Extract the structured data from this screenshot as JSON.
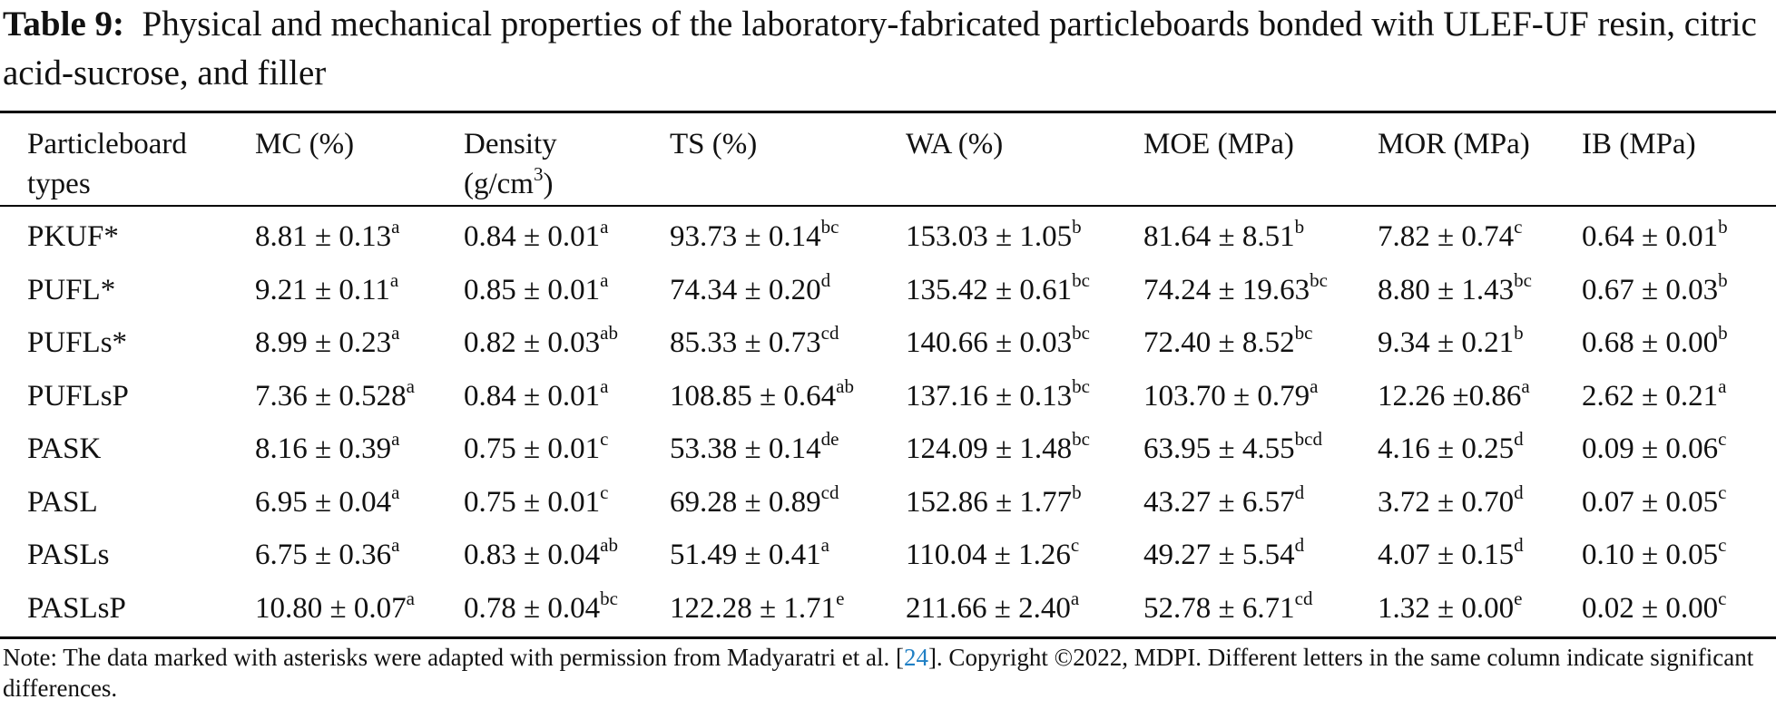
{
  "caption": {
    "label": "Table 9:",
    "text": "Physical and mechanical properties of the laboratory-fabricated particleboards bonded with ULEF-UF resin, citric acid-sucrose, and filler"
  },
  "headers": [
    {
      "line1": "Particleboard",
      "line2": "types"
    },
    {
      "line1": "MC (%)"
    },
    {
      "line1": "Density",
      "line2": "(g/cm",
      "sup": "3",
      "tail": ")"
    },
    {
      "line1": "TS (%)"
    },
    {
      "line1": "WA (%)"
    },
    {
      "line1": "MOE (MPa)"
    },
    {
      "line1": "MOR (MPa)"
    },
    {
      "line1": "IB (MPa)"
    }
  ],
  "rows": [
    {
      "type": "PKUF*",
      "cells": [
        {
          "v": "8.81 ± 0.13",
          "s": "a"
        },
        {
          "v": "0.84 ± 0.01",
          "s": "a"
        },
        {
          "v": "93.73 ± 0.14",
          "s": "bc"
        },
        {
          "v": "153.03 ± 1.05",
          "s": "b"
        },
        {
          "v": "81.64 ± 8.51",
          "s": "b"
        },
        {
          "v": "7.82 ± 0.74",
          "s": "c"
        },
        {
          "v": "0.64 ± 0.01",
          "s": "b"
        }
      ]
    },
    {
      "type": "PUFL*",
      "cells": [
        {
          "v": "9.21 ± 0.11",
          "s": "a"
        },
        {
          "v": "0.85 ± 0.01",
          "s": "a"
        },
        {
          "v": "74.34 ± 0.20",
          "s": "d"
        },
        {
          "v": "135.42 ± 0.61",
          "s": "bc"
        },
        {
          "v": "74.24 ± 19.63",
          "s": "bc"
        },
        {
          "v": "8.80 ± 1.43",
          "s": "bc"
        },
        {
          "v": "0.67 ± 0.03",
          "s": "b"
        }
      ]
    },
    {
      "type": "PUFLs*",
      "cells": [
        {
          "v": "8.99 ± 0.23",
          "s": "a"
        },
        {
          "v": "0.82 ± 0.03",
          "s": "ab"
        },
        {
          "v": "85.33 ± 0.73",
          "s": "cd"
        },
        {
          "v": "140.66 ± 0.03",
          "s": "bc"
        },
        {
          "v": "72.40 ± 8.52",
          "s": "bc"
        },
        {
          "v": "9.34 ± 0.21",
          "s": "b"
        },
        {
          "v": "0.68 ± 0.00",
          "s": "b"
        }
      ]
    },
    {
      "type": "PUFLsP",
      "cells": [
        {
          "v": "7.36 ± 0.528",
          "s": "a"
        },
        {
          "v": "0.84 ± 0.01",
          "s": "a"
        },
        {
          "v": "108.85 ± 0.64",
          "s": "ab"
        },
        {
          "v": "137.16 ± 0.13",
          "s": "bc"
        },
        {
          "v": "103.70 ± 0.79",
          "s": "a"
        },
        {
          "v": "12.26 ±0.86",
          "s": "a"
        },
        {
          "v": "2.62 ± 0.21",
          "s": "a"
        }
      ]
    },
    {
      "type": "PASK",
      "cells": [
        {
          "v": "8.16 ± 0.39",
          "s": "a"
        },
        {
          "v": "0.75 ± 0.01",
          "s": "c"
        },
        {
          "v": "53.38 ± 0.14",
          "s": "de"
        },
        {
          "v": "124.09 ± 1.48",
          "s": "bc"
        },
        {
          "v": "63.95 ± 4.55",
          "s": "bcd"
        },
        {
          "v": "4.16 ± 0.25",
          "s": "d"
        },
        {
          "v": "0.09 ± 0.06",
          "s": "c"
        }
      ]
    },
    {
      "type": "PASL",
      "cells": [
        {
          "v": "6.95 ± 0.04",
          "s": "a"
        },
        {
          "v": "0.75 ± 0.01",
          "s": "c"
        },
        {
          "v": "69.28 ± 0.89",
          "s": "cd"
        },
        {
          "v": "152.86 ± 1.77",
          "s": "b"
        },
        {
          "v": "43.27 ± 6.57",
          "s": "d"
        },
        {
          "v": "3.72 ± 0.70",
          "s": "d"
        },
        {
          "v": "0.07 ± 0.05",
          "s": "c"
        }
      ]
    },
    {
      "type": "PASLs",
      "cells": [
        {
          "v": "6.75 ± 0.36",
          "s": "a"
        },
        {
          "v": "0.83 ± 0.04",
          "s": "ab"
        },
        {
          "v": "51.49 ± 0.41",
          "s": "a"
        },
        {
          "v": "110.04 ± 1.26",
          "s": "c"
        },
        {
          "v": "49.27 ± 5.54",
          "s": "d"
        },
        {
          "v": "4.07 ± 0.15",
          "s": "d"
        },
        {
          "v": "0.10 ± 0.05",
          "s": "c"
        }
      ]
    },
    {
      "type": "PASLsP",
      "cells": [
        {
          "v": "10.80 ± 0.07",
          "s": "a"
        },
        {
          "v": "0.78 ± 0.04",
          "s": "bc"
        },
        {
          "v": "122.28 ± 1.71",
          "s": "e"
        },
        {
          "v": "211.66 ± 2.40",
          "s": "a"
        },
        {
          "v": "52.78 ± 6.71",
          "s": "cd"
        },
        {
          "v": "1.32 ± 0.00",
          "s": "e"
        },
        {
          "v": "0.02 ± 0.00",
          "s": "c"
        }
      ]
    }
  ],
  "note": {
    "before": "Note: The data marked with asterisks were adapted with permission from Madyaratri et al. [",
    "ref": "24",
    "after": "]. Copyright ©2022, MDPI. Different letters in the same column indicate significant differences."
  },
  "colors": {
    "text": "#111111",
    "rule": "#000000",
    "link": "#1f7fc4"
  }
}
